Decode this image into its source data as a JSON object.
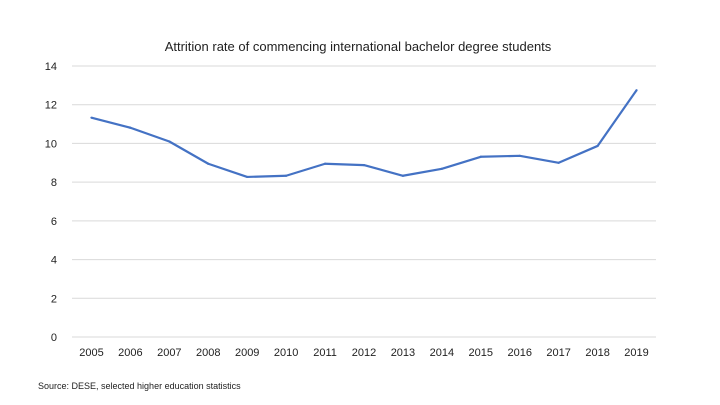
{
  "chart_data": {
    "type": "line",
    "title": "Attrition rate of commencing international bachelor degree students",
    "xlabel": "",
    "ylabel": "",
    "categories": [
      "2005",
      "2006",
      "2007",
      "2008",
      "2009",
      "2010",
      "2011",
      "2012",
      "2013",
      "2014",
      "2015",
      "2016",
      "2017",
      "2018",
      "2019"
    ],
    "series": [
      {
        "name": "Attrition rate",
        "color": "#4472C4",
        "values": [
          11.33,
          10.81,
          10.1,
          8.95,
          8.27,
          8.33,
          8.95,
          8.88,
          8.33,
          8.69,
          9.31,
          9.36,
          9.0,
          9.87,
          12.75
        ]
      }
    ],
    "ylim": [
      0,
      14
    ],
    "yticks": [
      0,
      2,
      4,
      6,
      8,
      10,
      12,
      14
    ],
    "grid": true,
    "legend": "none"
  },
  "source": "Source: DESE, selected higher education statistics"
}
